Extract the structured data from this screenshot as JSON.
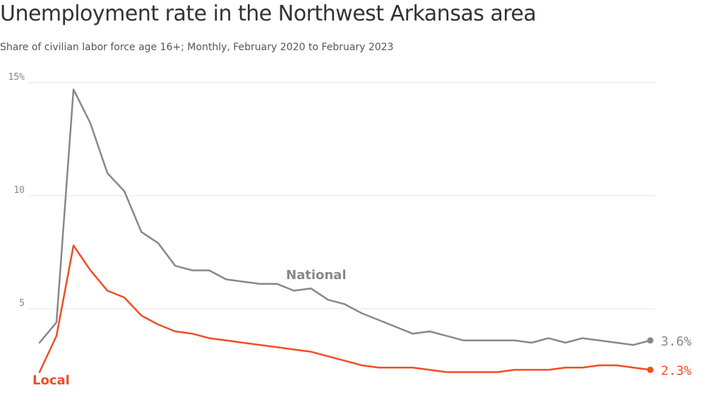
{
  "chart_data": {
    "type": "line",
    "title": "Unemployment rate in the Northwest Arkansas area",
    "subtitle": "Share of civilian labor force age 16+; Monthly, February 2020 to February 2023",
    "ylim": [
      0,
      15
    ],
    "yticks": [
      {
        "value": 15,
        "label": "15%"
      },
      {
        "value": 10,
        "label": "10"
      },
      {
        "value": 5,
        "label": "5"
      }
    ],
    "grid": true,
    "x": [
      "2020-02",
      "2020-03",
      "2020-04",
      "2020-05",
      "2020-06",
      "2020-07",
      "2020-08",
      "2020-09",
      "2020-10",
      "2020-11",
      "2020-12",
      "2021-01",
      "2021-02",
      "2021-03",
      "2021-04",
      "2021-05",
      "2021-06",
      "2021-07",
      "2021-08",
      "2021-09",
      "2021-10",
      "2021-11",
      "2021-12",
      "2022-01",
      "2022-02",
      "2022-03",
      "2022-04",
      "2022-05",
      "2022-06",
      "2022-07",
      "2022-08",
      "2022-09",
      "2022-10",
      "2022-11",
      "2022-12",
      "2023-01",
      "2023-02"
    ],
    "series": [
      {
        "name": "National",
        "color": "#888888",
        "values": [
          3.5,
          4.4,
          14.7,
          13.2,
          11.0,
          10.2,
          8.4,
          7.9,
          6.9,
          6.7,
          6.7,
          6.3,
          6.2,
          6.1,
          6.1,
          5.8,
          5.9,
          5.4,
          5.2,
          4.8,
          4.5,
          4.2,
          3.9,
          4.0,
          3.8,
          3.6,
          3.6,
          3.6,
          3.6,
          3.5,
          3.7,
          3.5,
          3.7,
          3.6,
          3.5,
          3.4,
          3.6
        ],
        "end_label": "3.6%"
      },
      {
        "name": "Local",
        "color": "#f04e23",
        "values": [
          2.2,
          3.8,
          7.8,
          6.7,
          5.8,
          5.5,
          4.7,
          4.3,
          4.0,
          3.9,
          3.7,
          3.6,
          3.5,
          3.4,
          3.3,
          3.2,
          3.1,
          2.9,
          2.7,
          2.5,
          2.4,
          2.4,
          2.4,
          2.3,
          2.2,
          2.2,
          2.2,
          2.2,
          2.3,
          2.3,
          2.3,
          2.4,
          2.4,
          2.5,
          2.5,
          2.4,
          2.3
        ],
        "end_label": "2.3%"
      }
    ]
  }
}
